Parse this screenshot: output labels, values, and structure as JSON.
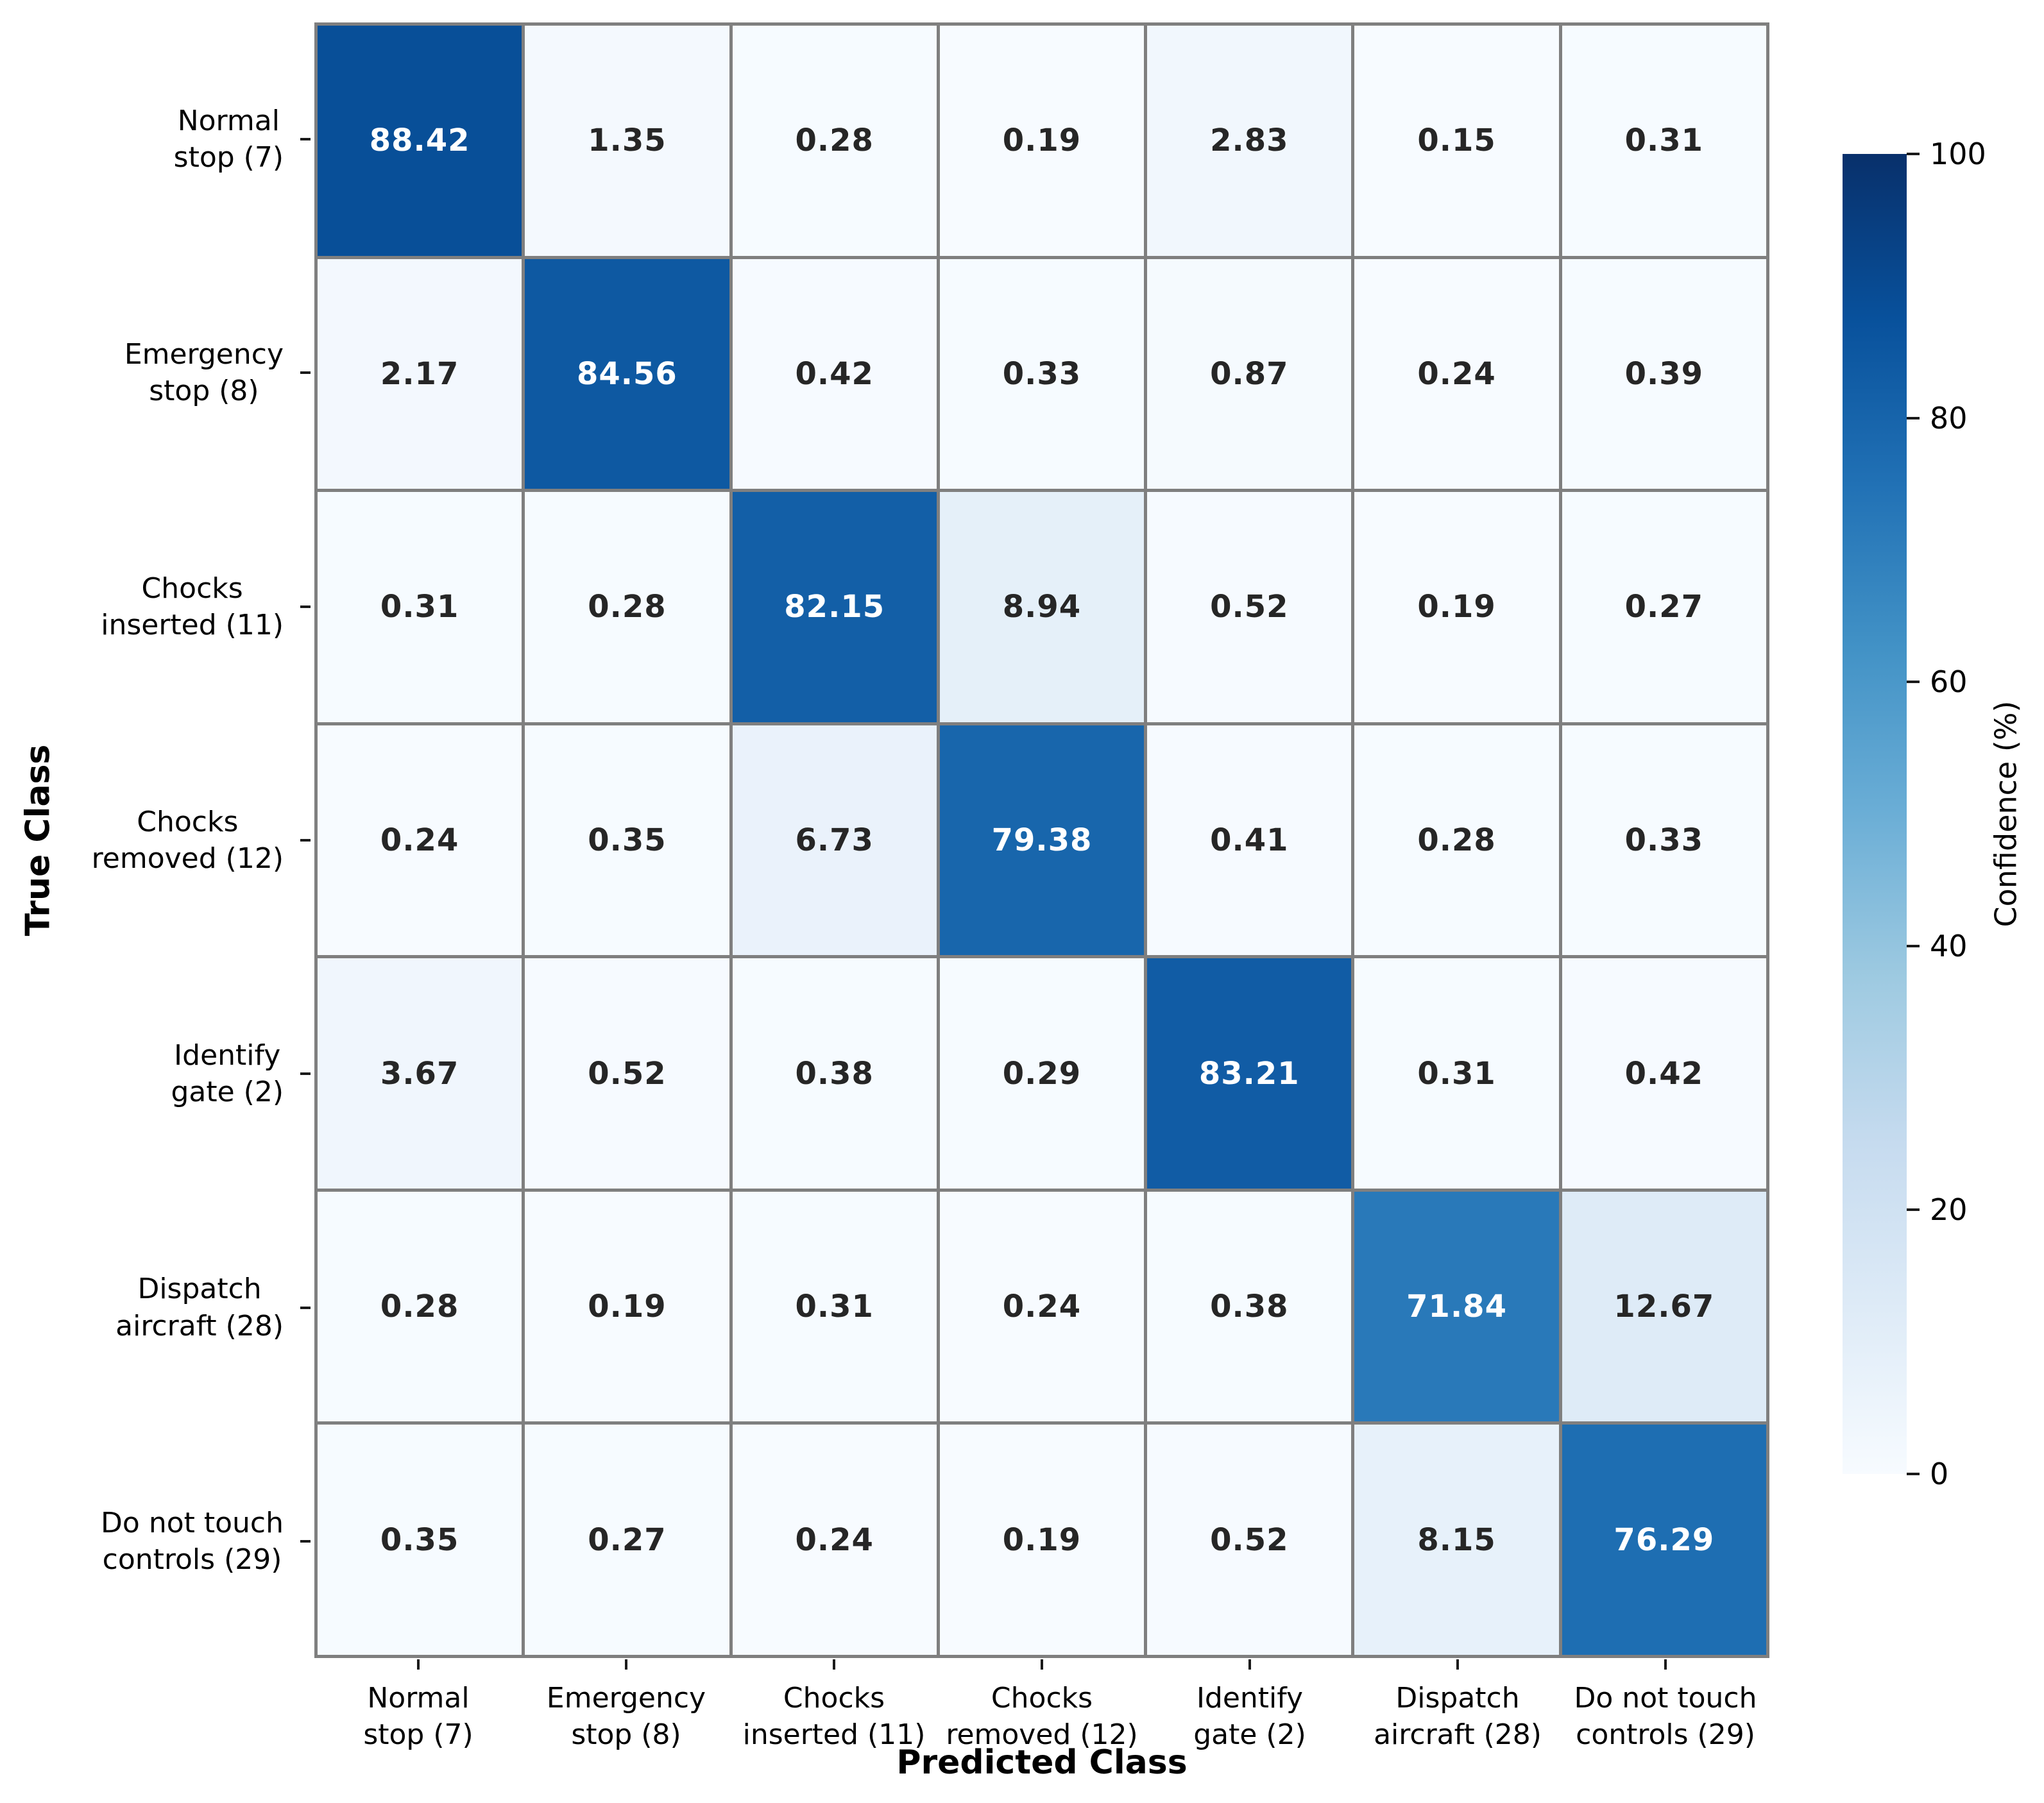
{
  "chart_data": {
    "type": "heatmap",
    "xlabel": "Predicted Class",
    "ylabel": "True Class",
    "classes": [
      "Normal stop (7)",
      "Emergency stop (8)",
      "Chocks inserted (11)",
      "Chocks removed (12)",
      "Identify gate (2)",
      "Dispatch aircraft (28)",
      "Do not touch controls (29)"
    ],
    "y_tick_labels_2line": [
      [
        "Normal",
        "stop (7)"
      ],
      [
        "Emergency",
        "stop (8)"
      ],
      [
        "Chocks",
        "inserted (11)"
      ],
      [
        "Chocks",
        "removed (12)"
      ],
      [
        "Identify",
        "gate (2)"
      ],
      [
        "Dispatch",
        "aircraft (28)"
      ],
      [
        "Do not touch",
        "controls (29)"
      ]
    ],
    "x_tick_labels_2line": [
      [
        "Normal",
        "stop (7)"
      ],
      [
        "Emergency",
        "stop (8)"
      ],
      [
        "Chocks",
        "inserted (11)"
      ],
      [
        "Chocks",
        "removed (12)"
      ],
      [
        "Identify",
        "gate (2)"
      ],
      [
        "Dispatch",
        "aircraft (28)"
      ],
      [
        "Do not touch",
        "controls (29)"
      ]
    ],
    "matrix": [
      [
        88.42,
        1.35,
        0.28,
        0.19,
        2.83,
        0.15,
        0.31
      ],
      [
        2.17,
        84.56,
        0.42,
        0.33,
        0.87,
        0.24,
        0.39
      ],
      [
        0.31,
        0.28,
        82.15,
        8.94,
        0.52,
        0.19,
        0.27
      ],
      [
        0.24,
        0.35,
        6.73,
        79.38,
        0.41,
        0.28,
        0.33
      ],
      [
        3.67,
        0.52,
        0.38,
        0.29,
        83.21,
        0.31,
        0.42
      ],
      [
        0.28,
        0.19,
        0.31,
        0.24,
        0.38,
        71.84,
        12.67
      ],
      [
        0.35,
        0.27,
        0.24,
        0.19,
        0.52,
        8.15,
        76.29
      ]
    ],
    "value_range": [
      0,
      100
    ],
    "value_decimals": 2,
    "colorbar": {
      "label": "Confidence (%)",
      "ticks": [
        0,
        20,
        40,
        60,
        80,
        100
      ]
    },
    "colormap": {
      "name": "Blues",
      "anchors": [
        {
          "pos": 0.0,
          "color": "#f7fbff"
        },
        {
          "pos": 0.125,
          "color": "#deebf7"
        },
        {
          "pos": 0.25,
          "color": "#c6dbef"
        },
        {
          "pos": 0.375,
          "color": "#9ecae1"
        },
        {
          "pos": 0.5,
          "color": "#6baed6"
        },
        {
          "pos": 0.625,
          "color": "#4292c6"
        },
        {
          "pos": 0.75,
          "color": "#2171b5"
        },
        {
          "pos": 0.875,
          "color": "#08519c"
        },
        {
          "pos": 1.0,
          "color": "#08306b"
        }
      ]
    },
    "grid_line_color": "#7f7f7f",
    "cell_text_dark": "#262626",
    "cell_text_light": "#ffffff",
    "white_text_threshold": 50,
    "legend_position": "right",
    "grid": "on"
  }
}
